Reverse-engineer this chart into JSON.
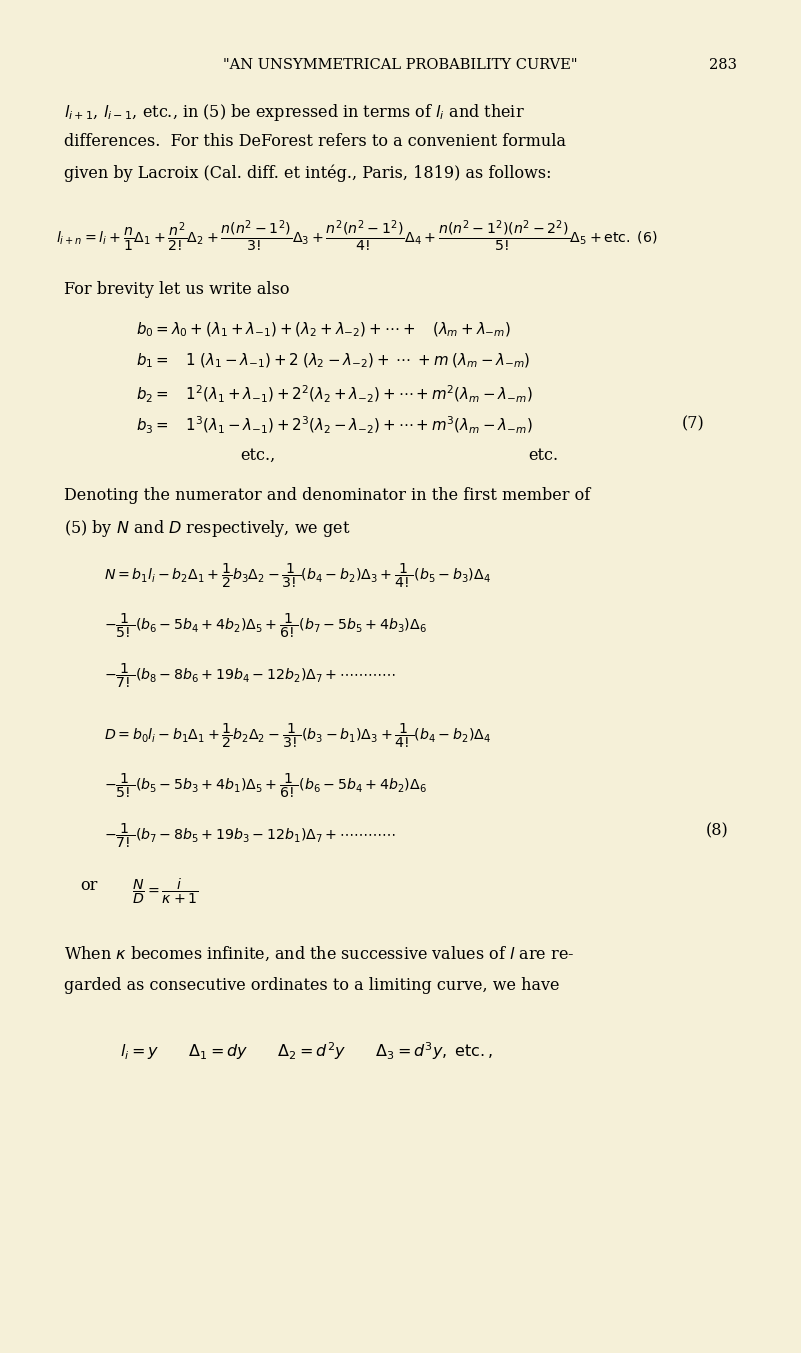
{
  "background_color": "#f5f0d8",
  "page_width": 8.01,
  "page_height": 13.53,
  "dpi": 100,
  "header_text": "\"AN UNSYMMETRICAL PROBABILITY CURVE\"",
  "page_number": "283",
  "body_lines": [
    "$l_{i+1}$, $l_{i-1}$, etc., in (5) be expressed in terms of $l_i$ and their",
    "differences.  For this DeForest refers to a convenient formula",
    "given by Lacroix (Cal. diff. et intég., Paris, 1819) as follows:"
  ],
  "eq6": "$l_{i+n}=l_i+\\dfrac{n}{1}\\Delta_1+\\dfrac{n^2}{2!}\\Delta_2+\\dfrac{n(n^2-1^2)}{3!}\\Delta_3+\\dfrac{n^2(n^2-1^2)}{4!}\\Delta_4+\\dfrac{n(n^2-1^2)(n^2-2^2)}{5!}\\Delta_5+\\mathrm{etc.}\\;(6)$",
  "brevity_intro": "For brevity let us write also",
  "b_equations": [
    "$b_0=\\lambda_0+(\\lambda_1+\\lambda_{-1})+(\\lambda_2+\\lambda_{-2})+\\cdots+\\quad(\\lambda_m+\\lambda_{-m})$",
    "$b_1=\\quad 1\\;(\\lambda_1-\\lambda_{-1})+2\\;(\\lambda_2-\\lambda_{-2})+\\;\\cdots\\;+m\\;(\\lambda_m-\\lambda_{-m})$",
    "$b_2=\\quad 1^2(\\lambda_1+\\lambda_{-1})+2^2(\\lambda_2+\\lambda_{-2})+\\cdots+m^2(\\lambda_m-\\lambda_{-m})$",
    "$b_3=\\quad 1^3(\\lambda_1-\\lambda_{-1})+2^3(\\lambda_2-\\lambda_{-2})+\\cdots+m^3(\\lambda_m-\\lambda_{-m})$"
  ],
  "b_eq_tag": "(7)",
  "etc_left": "etc.,",
  "etc_right": "etc.",
  "denom_intro": "Denoting the numerator and denominator in the first member of",
  "denom_intro2": "(5) by $N$ and $D$ respectively, we get",
  "N_lines": [
    "$N=b_1 l_i-b_2\\Delta_1+\\dfrac{1}{2}b_3\\Delta_2-\\dfrac{1}{3!}(b_4-b_2)\\Delta_3+\\dfrac{1}{4!}(b_5-b_3)\\Delta_4$",
    "$-\\dfrac{1}{5!}(b_6-5b_4+4b_2)\\Delta_5+\\dfrac{1}{6!}(b_7-5b_5+4b_3)\\Delta_6$",
    "$-\\dfrac{1}{7!}(b_8-8b_6+19b_4-12b_2)\\Delta_7+\\cdots\\cdots\\cdots\\cdots$"
  ],
  "D_lines": [
    "$D=b_0 l_i-b_1\\Delta_1+\\dfrac{1}{2}b_2\\Delta_2-\\dfrac{1}{3!}(b_3-b_1)\\Delta_3+\\dfrac{1}{4!}(b_4-b_2)\\Delta_4$",
    "$-\\dfrac{1}{5!}(b_5-5b_3+4b_1)\\Delta_5+\\dfrac{1}{6!}(b_6-5b_4+4b_2)\\Delta_6$",
    "$-\\dfrac{1}{7!}(b_7-8b_5+19b_3-12b_1)\\Delta_7+\\cdots\\cdots\\cdots\\cdots$"
  ],
  "D_tag": "(8)",
  "or_line_prefix": "or",
  "or_frac": "$\\dfrac{N}{D}=\\dfrac{i}{\\kappa+1}$",
  "when_lines": [
    "When $\\kappa$ becomes infinite, and the successive values of $l$ are re-",
    "garded as consecutive ordinates to a limiting curve, we have"
  ],
  "final_eq": "$l_i=y \\qquad \\Delta_1=dy \\qquad \\Delta_2=d^2y \\qquad \\Delta_3=d^3y,\\;\\mathrm{etc.,}$"
}
